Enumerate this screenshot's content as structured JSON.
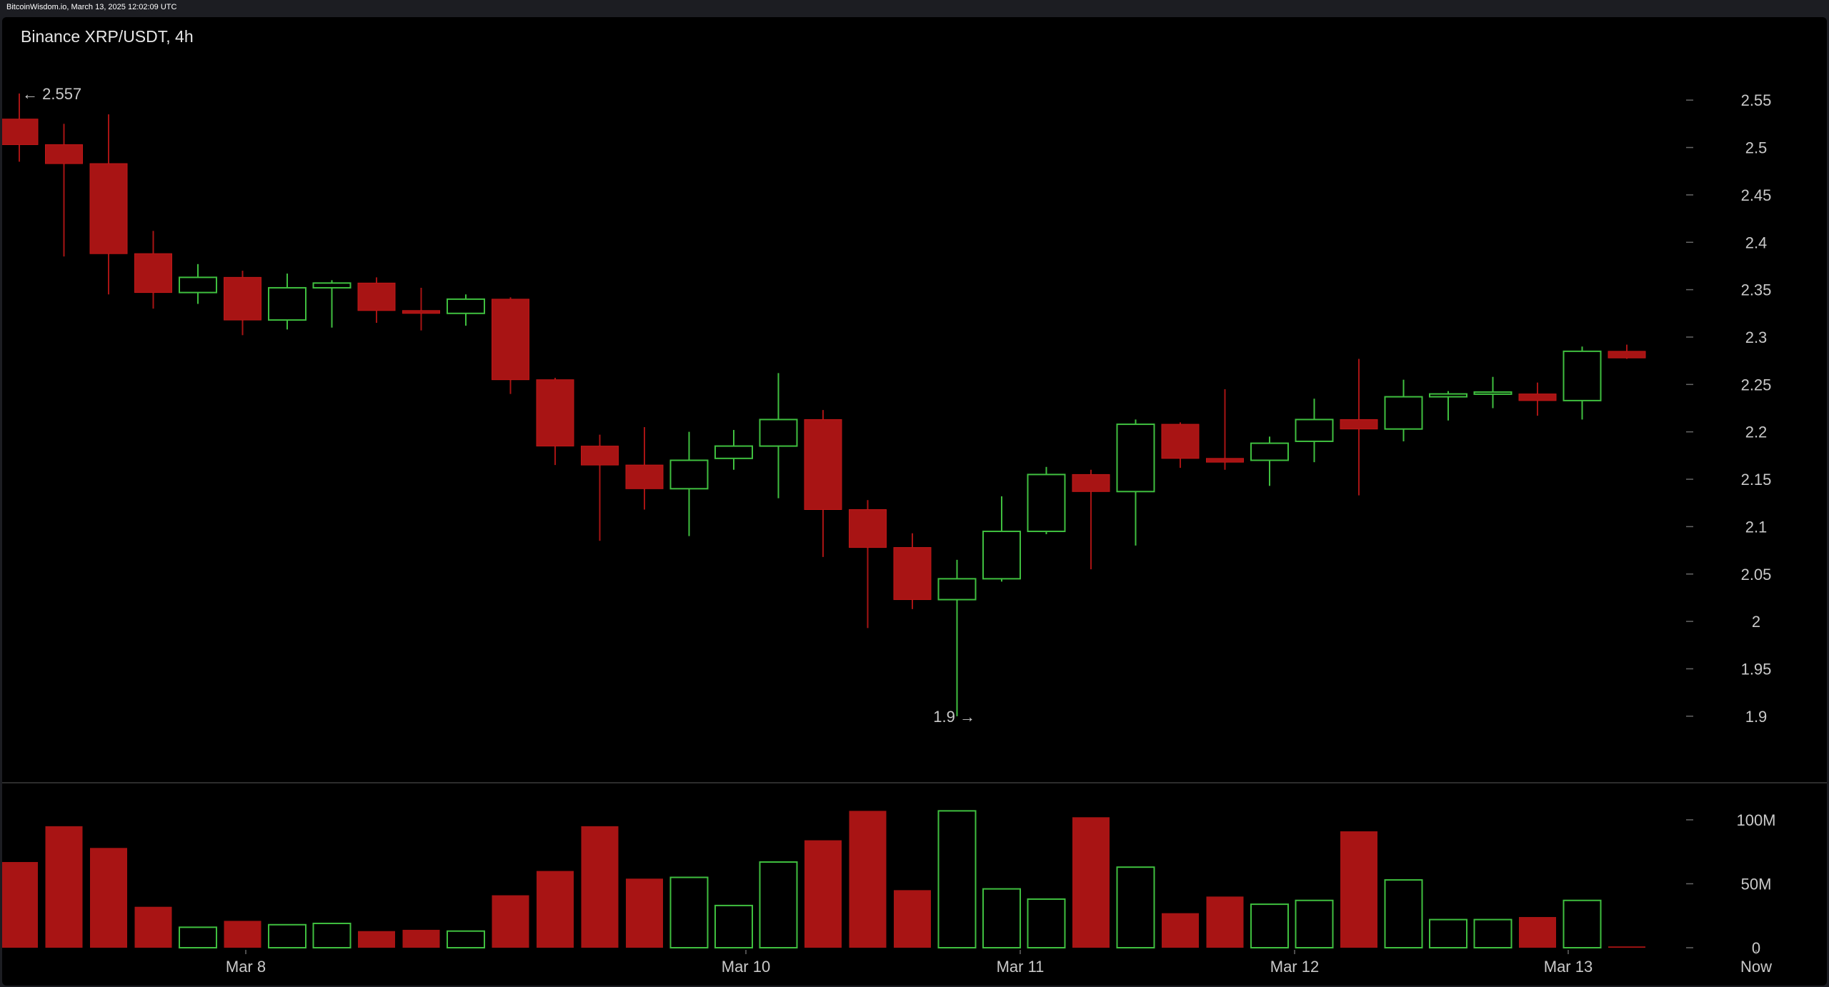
{
  "source_line": "BitcoinWisdom.io, March 13, 2025 12:02:09 UTC",
  "title": "Binance XRP/USDT, 4h",
  "colors": {
    "up": "#3fbf3f",
    "down": "#a81414",
    "background": "#000000",
    "text": "#c9c9c9"
  },
  "chart_data": [
    {
      "type": "candlestick",
      "title": "Binance XRP/USDT, 4h",
      "y_tick_labels": [
        "2.55",
        "2.5",
        "2.45",
        "2.4",
        "2.35",
        "2.3",
        "2.25",
        "2.2",
        "2.15",
        "2.1",
        "2.05",
        "2",
        "1.95",
        "1.9"
      ],
      "x_tick_labels": [
        "Mar 8",
        "Mar 10",
        "Mar 11",
        "Mar 12",
        "Mar 13",
        "Now"
      ],
      "ylim": [
        1.875,
        2.575
      ],
      "grid": false,
      "annotations": {
        "high_label": "← 2.557",
        "low_label": "1.9 →",
        "high": 2.557,
        "low": 1.9
      },
      "candles": [
        {
          "o": 2.53,
          "h": 2.557,
          "l": 2.485,
          "c": 2.503
        },
        {
          "o": 2.503,
          "h": 2.525,
          "l": 2.385,
          "c": 2.483
        },
        {
          "o": 2.483,
          "h": 2.535,
          "l": 2.345,
          "c": 2.388
        },
        {
          "o": 2.388,
          "h": 2.412,
          "l": 2.33,
          "c": 2.347
        },
        {
          "o": 2.347,
          "h": 2.377,
          "l": 2.335,
          "c": 2.363
        },
        {
          "o": 2.363,
          "h": 2.37,
          "l": 2.302,
          "c": 2.318
        },
        {
          "o": 2.318,
          "h": 2.367,
          "l": 2.308,
          "c": 2.352
        },
        {
          "o": 2.352,
          "h": 2.36,
          "l": 2.31,
          "c": 2.357
        },
        {
          "o": 2.357,
          "h": 2.363,
          "l": 2.315,
          "c": 2.328
        },
        {
          "o": 2.328,
          "h": 2.352,
          "l": 2.307,
          "c": 2.325
        },
        {
          "o": 2.325,
          "h": 2.345,
          "l": 2.312,
          "c": 2.34
        },
        {
          "o": 2.34,
          "h": 2.342,
          "l": 2.24,
          "c": 2.255
        },
        {
          "o": 2.255,
          "h": 2.257,
          "l": 2.165,
          "c": 2.185
        },
        {
          "o": 2.185,
          "h": 2.197,
          "l": 2.085,
          "c": 2.165
        },
        {
          "o": 2.165,
          "h": 2.205,
          "l": 2.118,
          "c": 2.14
        },
        {
          "o": 2.14,
          "h": 2.2,
          "l": 2.09,
          "c": 2.17
        },
        {
          "o": 2.172,
          "h": 2.202,
          "l": 2.16,
          "c": 2.185
        },
        {
          "o": 2.185,
          "h": 2.262,
          "l": 2.13,
          "c": 2.213
        },
        {
          "o": 2.213,
          "h": 2.223,
          "l": 2.068,
          "c": 2.118
        },
        {
          "o": 2.118,
          "h": 2.128,
          "l": 1.993,
          "c": 2.078
        },
        {
          "o": 2.078,
          "h": 2.093,
          "l": 2.013,
          "c": 2.023
        },
        {
          "o": 2.023,
          "h": 2.065,
          "l": 1.9,
          "c": 2.045
        },
        {
          "o": 2.045,
          "h": 2.132,
          "l": 2.042,
          "c": 2.095
        },
        {
          "o": 2.095,
          "h": 2.163,
          "l": 2.092,
          "c": 2.155
        },
        {
          "o": 2.155,
          "h": 2.16,
          "l": 2.055,
          "c": 2.137
        },
        {
          "o": 2.137,
          "h": 2.213,
          "l": 2.08,
          "c": 2.208
        },
        {
          "o": 2.208,
          "h": 2.21,
          "l": 2.162,
          "c": 2.172
        },
        {
          "o": 2.172,
          "h": 2.245,
          "l": 2.16,
          "c": 2.168
        },
        {
          "o": 2.17,
          "h": 2.195,
          "l": 2.143,
          "c": 2.188
        },
        {
          "o": 2.19,
          "h": 2.235,
          "l": 2.168,
          "c": 2.213
        },
        {
          "o": 2.213,
          "h": 2.277,
          "l": 2.133,
          "c": 2.203
        },
        {
          "o": 2.203,
          "h": 2.255,
          "l": 2.19,
          "c": 2.237
        },
        {
          "o": 2.237,
          "h": 2.243,
          "l": 2.212,
          "c": 2.24
        },
        {
          "o": 2.24,
          "h": 2.258,
          "l": 2.225,
          "c": 2.242
        },
        {
          "o": 2.24,
          "h": 2.252,
          "l": 2.217,
          "c": 2.233
        },
        {
          "o": 2.233,
          "h": 2.29,
          "l": 2.213,
          "c": 2.285
        },
        {
          "o": 2.285,
          "h": 2.292,
          "l": 2.277,
          "c": 2.278
        }
      ],
      "volume": {
        "y_tick_labels": [
          "100M",
          "50M",
          "0"
        ],
        "ylim": [
          0,
          110000000
        ],
        "values": [
          67000000,
          95000000,
          78000000,
          32000000,
          16000000,
          21000000,
          18000000,
          19000000,
          13000000,
          14000000,
          13000000,
          41000000,
          60000000,
          95000000,
          54000000,
          55000000,
          33000000,
          67000000,
          84000000,
          107000000,
          45000000,
          107000000,
          46000000,
          38000000,
          102000000,
          63000000,
          27000000,
          40000000,
          34000000,
          37000000,
          91000000,
          53000000,
          22000000,
          22000000,
          24000000,
          37000000,
          1000000
        ]
      }
    }
  ]
}
